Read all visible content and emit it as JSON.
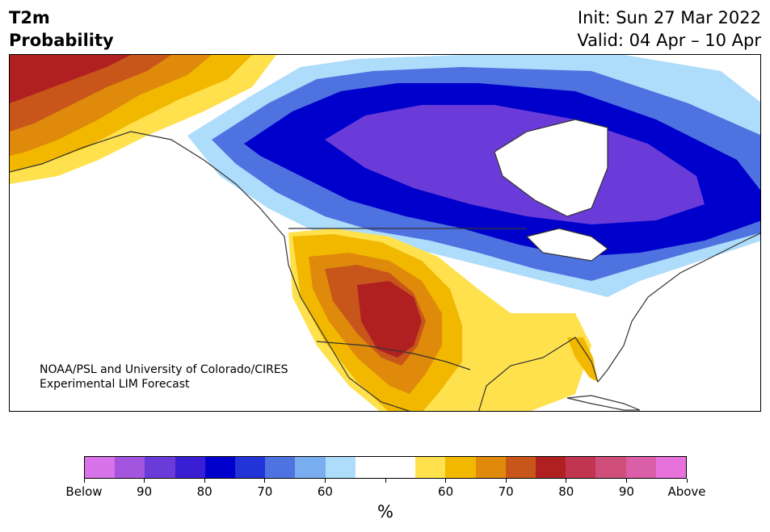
{
  "header": {
    "variable": "T2m",
    "product": "Probability",
    "init": "Init: Sun 27 Mar 2022",
    "valid": "Valid: 04 Apr – 10 Apr"
  },
  "credit": {
    "line1": "NOAA/PSL and University of Colorado/CIRES",
    "line2": "Experimental LIM Forecast"
  },
  "colorbar": {
    "unit": "%",
    "colors": [
      "#d772e8",
      "#a355e0",
      "#6a3bd8",
      "#3a1ed4",
      "#0000cc",
      "#2234d8",
      "#4e72e0",
      "#78aef0",
      "#aedcfb",
      "#ffffff",
      "#ffffff",
      "#ffe14d",
      "#f2b800",
      "#df8a0b",
      "#c8561a",
      "#b02020",
      "#c23550",
      "#cf4e7a",
      "#db5fa8",
      "#e872dc"
    ],
    "tick_labels": [
      "Below",
      "90",
      "80",
      "70",
      "60",
      "",
      "60",
      "70",
      "80",
      "90",
      "Above"
    ]
  },
  "map_colors": {
    "below_light": "#aedcfb",
    "below_mid": "#4e72e0",
    "below_dark": "#0000cc",
    "below_purple": "#6a3bd8",
    "above_yellow": "#ffe14d",
    "above_gold": "#f2b800",
    "above_orange": "#df8a0b",
    "above_red": "#b02020"
  }
}
